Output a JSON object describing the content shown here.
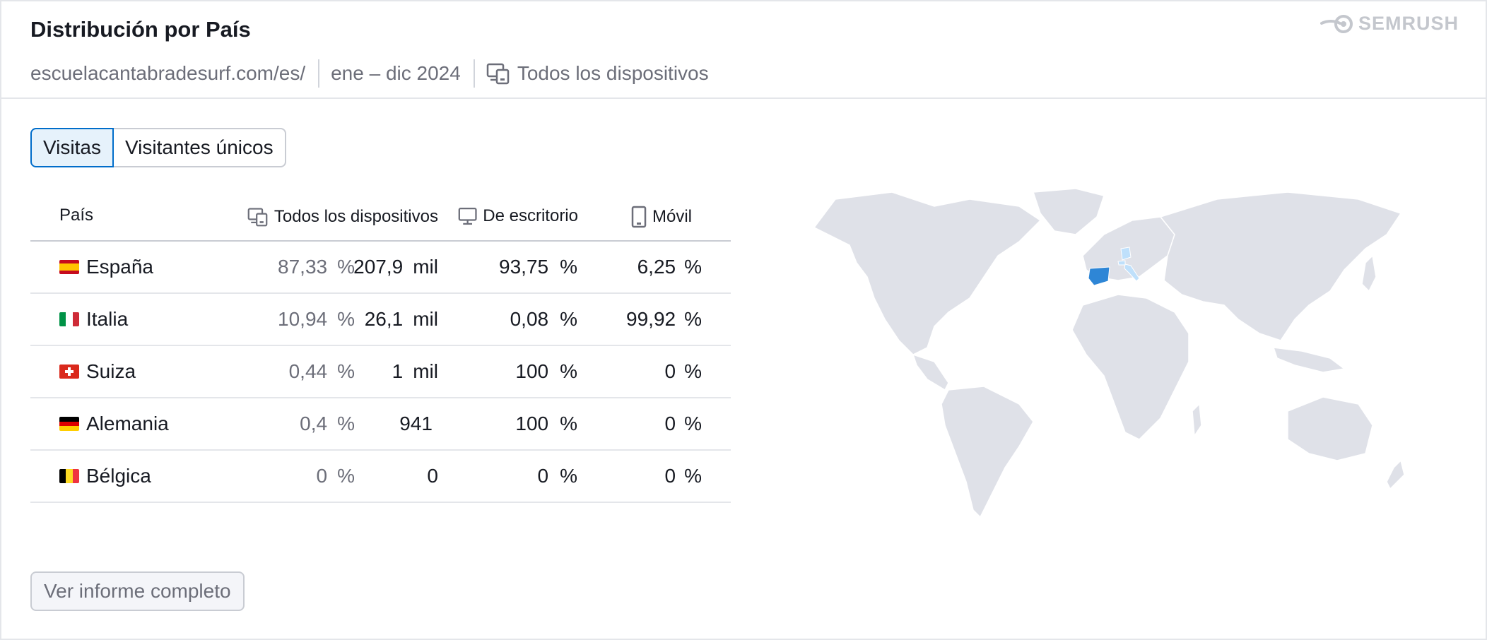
{
  "header": {
    "title": "Distribución por País",
    "brand": "SEMRUSH",
    "domain": "escuelacantabradesurf.com/es/",
    "period": "ene – dic 2024",
    "devices": "Todos los dispositivos"
  },
  "tabs": [
    {
      "label": "Visitas",
      "active": true
    },
    {
      "label": "Visitantes únicos",
      "active": false
    }
  ],
  "table": {
    "columns": {
      "country": "País",
      "all_devices": "Todos los dispositivos",
      "desktop": "De escritorio",
      "mobile": "Móvil"
    },
    "rows": [
      {
        "country": "España",
        "flag": "es",
        "share": "87,33",
        "share_unit": "%",
        "visits": "207,9",
        "visits_unit": "mil",
        "desktop": "93,75",
        "desktop_unit": "%",
        "mobile": "6,25",
        "mobile_unit": "%"
      },
      {
        "country": "Italia",
        "flag": "it",
        "share": "10,94",
        "share_unit": "%",
        "visits": "26,1",
        "visits_unit": "mil",
        "desktop": "0,08",
        "desktop_unit": "%",
        "mobile": "99,92",
        "mobile_unit": "%"
      },
      {
        "country": "Suiza",
        "flag": "ch",
        "share": "0,44",
        "share_unit": "%",
        "visits": "1",
        "visits_unit": "mil",
        "desktop": "100",
        "desktop_unit": "%",
        "mobile": "0",
        "mobile_unit": "%"
      },
      {
        "country": "Alemania",
        "flag": "de",
        "share": "0,4",
        "share_unit": "%",
        "visits": "941",
        "visits_unit": "",
        "desktop": "100",
        "desktop_unit": "%",
        "mobile": "0",
        "mobile_unit": "%"
      },
      {
        "country": "Bélgica",
        "flag": "be",
        "share": "0",
        "share_unit": "%",
        "visits": "0",
        "visits_unit": "",
        "desktop": "0",
        "desktop_unit": "%",
        "mobile": "0",
        "mobile_unit": "%"
      }
    ]
  },
  "report_button": "Ver informe completo",
  "map": {
    "highlighted_primary": "España",
    "highlighted_secondary": [
      "Italia",
      "Suiza",
      "Alemania"
    ]
  },
  "colors": {
    "accent": "#006dca",
    "tab_active_bg": "#e6f2fb",
    "map_land": "#dfe1e8",
    "map_primary": "#2e86d6",
    "map_secondary": "#bfe0fb",
    "muted_text": "#6c6e79"
  },
  "icons": [
    "semrush-logo-icon",
    "devices-icon",
    "desktop-icon",
    "mobile-icon"
  ]
}
